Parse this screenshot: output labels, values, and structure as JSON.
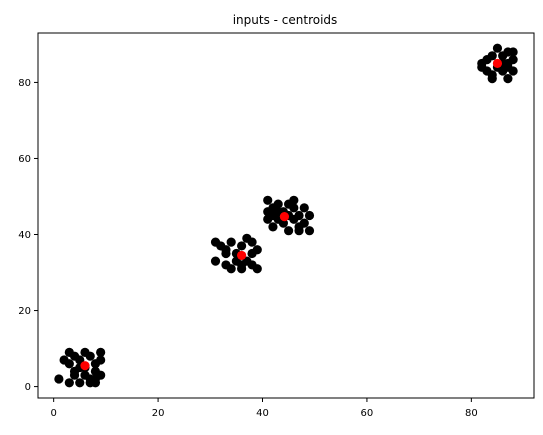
{
  "chart_data": {
    "type": "scatter",
    "title": "inputs - centroids",
    "xlabel": "",
    "ylabel": "",
    "xlim": [
      -3,
      92
    ],
    "ylim": [
      -3,
      93
    ],
    "x_ticks": [
      0,
      20,
      40,
      60,
      80
    ],
    "y_ticks": [
      0,
      20,
      40,
      60,
      80
    ],
    "grid": false,
    "legend": "none",
    "series": [
      {
        "marker_color": "#000000",
        "points": [
          [
            1,
            2
          ],
          [
            2,
            7
          ],
          [
            3,
            9
          ],
          [
            3,
            6
          ],
          [
            3,
            1
          ],
          [
            4,
            8
          ],
          [
            4,
            3
          ],
          [
            5,
            7
          ],
          [
            5,
            5
          ],
          [
            5,
            1
          ],
          [
            6,
            9
          ],
          [
            6,
            3
          ],
          [
            7,
            8
          ],
          [
            7,
            2
          ],
          [
            7,
            1
          ],
          [
            8,
            6
          ],
          [
            8,
            4
          ],
          [
            8,
            1
          ],
          [
            9,
            7
          ],
          [
            9,
            3
          ],
          [
            9,
            9
          ],
          [
            6,
            5
          ],
          [
            4,
            4
          ],
          [
            8,
            2
          ],
          [
            31,
            38
          ],
          [
            31,
            33
          ],
          [
            32,
            37
          ],
          [
            33,
            32
          ],
          [
            33,
            36
          ],
          [
            34,
            38
          ],
          [
            34,
            31
          ],
          [
            35,
            33
          ],
          [
            35,
            35
          ],
          [
            36,
            37
          ],
          [
            36,
            31
          ],
          [
            37,
            39
          ],
          [
            37,
            33
          ],
          [
            38,
            35
          ],
          [
            38,
            38
          ],
          [
            38,
            32
          ],
          [
            39,
            31
          ],
          [
            39,
            36
          ],
          [
            33,
            35
          ],
          [
            36,
            32
          ],
          [
            41,
            49
          ],
          [
            41,
            46
          ],
          [
            41,
            44
          ],
          [
            42,
            47
          ],
          [
            42,
            42
          ],
          [
            42,
            45
          ],
          [
            43,
            48
          ],
          [
            43,
            44
          ],
          [
            44,
            46
          ],
          [
            44,
            43
          ],
          [
            45,
            48
          ],
          [
            45,
            41
          ],
          [
            46,
            47
          ],
          [
            46,
            44
          ],
          [
            46,
            49
          ],
          [
            47,
            45
          ],
          [
            47,
            42
          ],
          [
            47,
            41
          ],
          [
            48,
            47
          ],
          [
            48,
            43
          ],
          [
            49,
            45
          ],
          [
            49,
            41
          ],
          [
            43,
            46
          ],
          [
            45,
            45
          ],
          [
            82,
            84
          ],
          [
            82,
            85
          ],
          [
            83,
            83
          ],
          [
            83,
            86
          ],
          [
            84,
            82
          ],
          [
            84,
            87
          ],
          [
            84,
            81
          ],
          [
            85,
            89
          ],
          [
            85,
            84
          ],
          [
            86,
            83
          ],
          [
            86,
            87
          ],
          [
            87,
            88
          ],
          [
            87,
            81
          ],
          [
            87,
            85
          ],
          [
            88,
            86
          ],
          [
            88,
            83
          ],
          [
            88,
            88
          ],
          [
            87,
            84
          ],
          [
            86,
            85
          ]
        ]
      },
      {
        "marker_color": "#ff0000",
        "points": [
          [
            6,
            5.5
          ],
          [
            36,
            34.5
          ],
          [
            44.2,
            44.7
          ],
          [
            85,
            85
          ]
        ]
      }
    ]
  }
}
